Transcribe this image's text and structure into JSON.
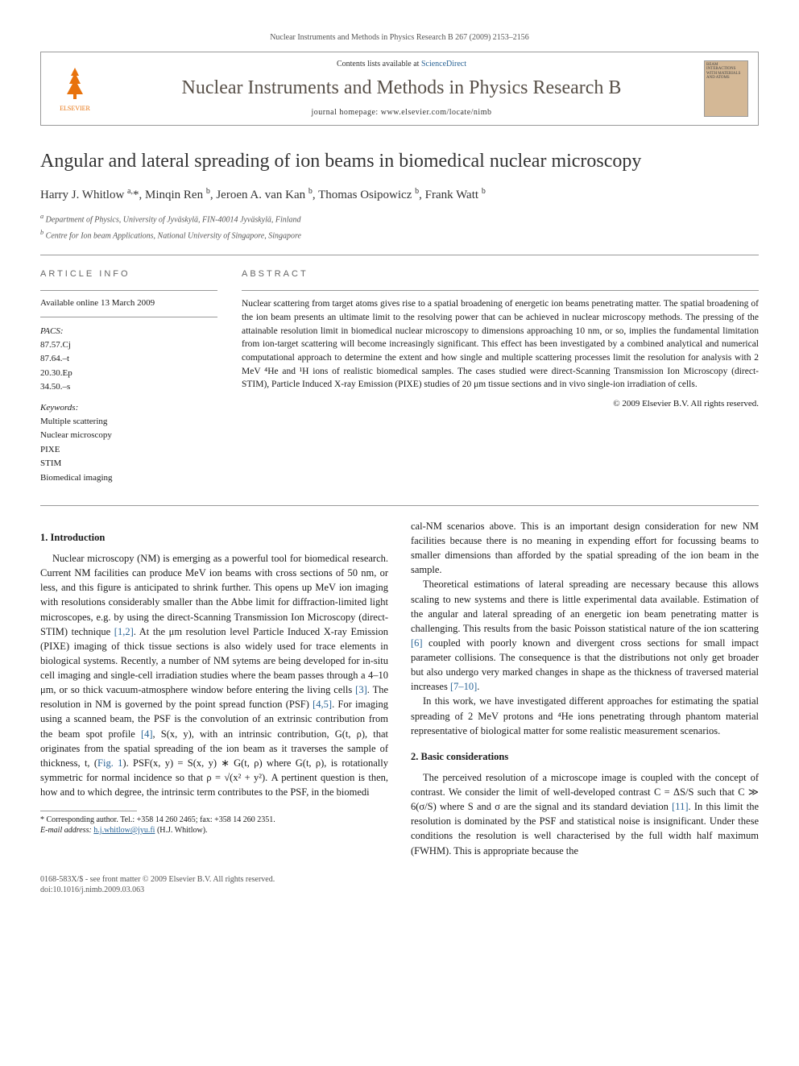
{
  "header": {
    "running_head": "Nuclear Instruments and Methods in Physics Research B 267 (2009) 2153–2156",
    "contents_prefix": "Contents lists available at ",
    "contents_link": "ScienceDirect",
    "journal_title": "Nuclear Instruments and Methods in Physics Research B",
    "homepage_prefix": "journal homepage: ",
    "homepage_url": "www.elsevier.com/locate/nimb",
    "publisher": "ELSEVIER",
    "cover_text": "BEAM INTERACTIONS WITH MATERIALS AND ATOMS"
  },
  "article": {
    "title": "Angular and lateral spreading of ion beams in biomedical nuclear microscopy",
    "authors_html": "Harry J. Whitlow <sup>a,</sup><span class='ast'>*</span>, Minqin Ren <sup>b</sup>, Jeroen A. van Kan <sup>b</sup>, Thomas Osipowicz <sup>b</sup>, Frank Watt <sup>b</sup>",
    "affiliations": [
      "a Department of Physics, University of Jyväskylä, FIN-40014 Jyväskylä, Finland",
      "b Centre for Ion beam Applications, National University of Singapore, Singapore"
    ]
  },
  "info": {
    "label": "ARTICLE INFO",
    "history": "Available online 13 March 2009",
    "pacs_label": "PACS:",
    "pacs": [
      "87.57.Cj",
      "87.64.–t",
      "20.30.Ep",
      "34.50.–s"
    ],
    "keywords_label": "Keywords:",
    "keywords": [
      "Multiple scattering",
      "Nuclear microscopy",
      "PIXE",
      "STIM",
      "Biomedical imaging"
    ]
  },
  "abstract": {
    "label": "ABSTRACT",
    "text": "Nuclear scattering from target atoms gives rise to a spatial broadening of energetic ion beams penetrating matter. The spatial broadening of the ion beam presents an ultimate limit to the resolving power that can be achieved in nuclear microscopy methods. The pressing of the attainable resolution limit in biomedical nuclear microscopy to dimensions approaching 10 nm, or so, implies the fundamental limitation from ion-target scattering will become increasingly significant. This effect has been investigated by a combined analytical and numerical computational approach to determine the extent and how single and multiple scattering processes limit the resolution for analysis with 2 MeV ⁴He and ¹H ions of realistic biomedical samples. The cases studied were direct-Scanning Transmission Ion Microscopy (direct-STIM), Particle Induced X-ray Emission (PIXE) studies of 20 μm tissue sections and in vivo single-ion irradiation of cells.",
    "copyright": "© 2009 Elsevier B.V. All rights reserved."
  },
  "sections": {
    "s1_title": "1. Introduction",
    "s1_p1": "Nuclear microscopy (NM) is emerging as a powerful tool for biomedical research. Current NM facilities can produce MeV ion beams with cross sections of 50 nm, or less, and this figure is anticipated to shrink further. This opens up MeV ion imaging with resolutions considerably smaller than the Abbe limit for diffraction-limited light microscopes, e.g. by using the direct-Scanning Transmission Ion Microscopy (direct-STIM) technique [1,2]. At the μm resolution level Particle Induced X-ray Emission (PIXE) imaging of thick tissue sections is also widely used for trace elements in biological systems. Recently, a number of NM sytems are being developed for in-situ cell imaging and single-cell irradiation studies where the beam passes through a 4–10 μm, or so thick vacuum-atmosphere window before entering the living cells [3]. The resolution in NM is governed by the point spread function (PSF) [4,5]. For imaging using a scanned beam, the PSF is the convolution of an extrinsic contribution from the beam spot profile [4], S(x, y), with an intrinsic contribution, G(t, ρ), that originates from the spatial spreading of the ion beam as it traverses the sample of thickness, t, (Fig. 1). PSF(x, y) = S(x, y) ∗ G(t, ρ) where G(t, ρ), is rotationally symmetric for normal incidence so that ρ = √(x² + y²). A pertinent question is then, how and to which degree, the intrinsic term contributes to the PSF, in the biomedi",
    "s1_p2": "cal-NM scenarios above. This is an important design consideration for new NM facilities because there is no meaning in expending effort for focussing beams to smaller dimensions than afforded by the spatial spreading of the ion beam in the sample.",
    "s1_p3": "Theoretical estimations of lateral spreading are necessary because this allows scaling to new systems and there is little experimental data available. Estimation of the angular and lateral spreading of an energetic ion beam penetrating matter is challenging. This results from the basic Poisson statistical nature of the ion scattering [6] coupled with poorly known and divergent cross sections for small impact parameter collisions. The consequence is that the distributions not only get broader but also undergo very marked changes in shape as the thickness of traversed material increases [7–10].",
    "s1_p4": "In this work, we have investigated different approaches for estimating the spatial spreading of 2 MeV protons and ⁴He ions penetrating through phantom material representative of biological matter for some realistic measurement scenarios.",
    "s2_title": "2. Basic considerations",
    "s2_p1": "The perceived resolution of a microscope image is coupled with the concept of contrast. We consider the limit of well-developed contrast C = ΔS/S such that C ≫ 6(σ/S) where S and σ are the signal and its standard deviation [11]. In this limit the resolution is dominated by the PSF and statistical noise is insignificant. Under these conditions the resolution is well characterised by the full width half maximum (FWHM). This is appropriate because the"
  },
  "footnote": {
    "corr_label": "* Corresponding author. Tel.: +358 14 260 2465; fax: +358 14 260 2351.",
    "email_label": "E-mail address:",
    "email": "h.j.whitlow@jyu.fi",
    "email_who": "(H.J. Whitlow)."
  },
  "footer": {
    "issn_line": "0168-583X/$ - see front matter © 2009 Elsevier B.V. All rights reserved.",
    "doi_line": "doi:10.1016/j.nimb.2009.03.063"
  },
  "colors": {
    "link": "#2a6496",
    "elsevier_orange": "#e8720c",
    "border": "#999999",
    "text_muted": "#555555",
    "cover_bg": "#d4b896"
  }
}
